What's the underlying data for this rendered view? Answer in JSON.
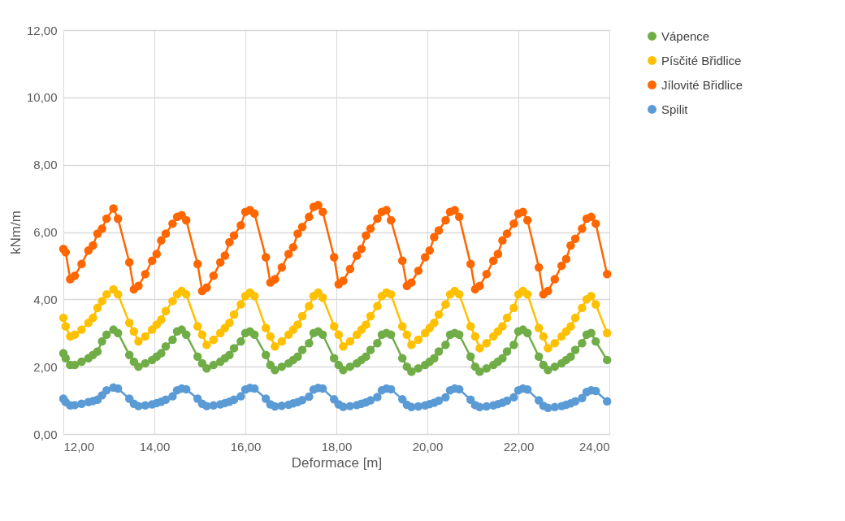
{
  "chart_data": {
    "type": "line",
    "xlabel": "Deformace [m]",
    "ylabel": "kNm/m",
    "marker": "circle",
    "line_style": "solid",
    "grid": true,
    "legend": "right",
    "xlim": [
      12,
      24
    ],
    "ylim": [
      0,
      12
    ],
    "xticks": [
      {
        "value": 12,
        "label": "12,00"
      },
      {
        "value": 14,
        "label": "14,00"
      },
      {
        "value": 16,
        "label": "16,00"
      },
      {
        "value": 18,
        "label": "18,00"
      },
      {
        "value": 20,
        "label": "20,00"
      },
      {
        "value": 22,
        "label": "22,00"
      },
      {
        "value": 24,
        "label": "24,00"
      }
    ],
    "yticks": [
      {
        "value": 0,
        "label": "0,00"
      },
      {
        "value": 2,
        "label": "2,00"
      },
      {
        "value": 4,
        "label": "4,00"
      },
      {
        "value": 6,
        "label": "6,00"
      },
      {
        "value": 8,
        "label": "8,00"
      },
      {
        "value": 10,
        "label": "10,00"
      },
      {
        "value": 12,
        "label": "12,00"
      }
    ],
    "x": [
      12.0,
      12.05,
      12.15,
      12.25,
      12.4,
      12.55,
      12.65,
      12.75,
      12.85,
      12.95,
      13.1,
      13.2,
      13.45,
      13.55,
      13.65,
      13.8,
      13.95,
      14.05,
      14.15,
      14.25,
      14.4,
      14.5,
      14.6,
      14.7,
      14.95,
      15.05,
      15.15,
      15.3,
      15.45,
      15.55,
      15.65,
      15.75,
      15.9,
      16.0,
      16.1,
      16.2,
      16.45,
      16.55,
      16.65,
      16.8,
      16.95,
      17.05,
      17.15,
      17.25,
      17.4,
      17.5,
      17.6,
      17.7,
      17.95,
      18.05,
      18.15,
      18.3,
      18.45,
      18.55,
      18.65,
      18.75,
      18.9,
      19.0,
      19.1,
      19.2,
      19.45,
      19.55,
      19.65,
      19.8,
      19.95,
      20.05,
      20.15,
      20.25,
      20.4,
      20.5,
      20.6,
      20.7,
      20.95,
      21.05,
      21.15,
      21.3,
      21.45,
      21.55,
      21.65,
      21.75,
      21.9,
      22.0,
      22.1,
      22.2,
      22.45,
      22.55,
      22.65,
      22.8,
      22.95,
      23.05,
      23.15,
      23.25,
      23.4,
      23.5,
      23.6,
      23.7,
      23.95
    ],
    "series": [
      {
        "name": "Vápence",
        "color": "#70ad47",
        "values": [
          2.4,
          2.25,
          2.05,
          2.05,
          2.15,
          2.25,
          2.35,
          2.45,
          2.75,
          2.95,
          3.1,
          3.0,
          2.35,
          2.15,
          2.0,
          2.1,
          2.2,
          2.3,
          2.4,
          2.6,
          2.8,
          3.05,
          3.1,
          2.95,
          2.3,
          2.1,
          1.95,
          2.05,
          2.15,
          2.25,
          2.35,
          2.55,
          2.75,
          3.0,
          3.05,
          2.95,
          2.35,
          2.05,
          1.9,
          2.0,
          2.1,
          2.2,
          2.3,
          2.5,
          2.7,
          3.0,
          3.05,
          2.95,
          2.25,
          2.05,
          1.9,
          2.0,
          2.1,
          2.2,
          2.3,
          2.5,
          2.7,
          2.95,
          3.0,
          2.95,
          2.25,
          2.0,
          1.85,
          1.95,
          2.05,
          2.15,
          2.25,
          2.45,
          2.65,
          2.95,
          3.0,
          2.95,
          2.3,
          2.0,
          1.85,
          1.95,
          2.05,
          2.15,
          2.25,
          2.45,
          2.65,
          3.05,
          3.1,
          3.0,
          2.3,
          2.05,
          1.9,
          2.0,
          2.1,
          2.2,
          2.3,
          2.5,
          2.7,
          2.95,
          3.0,
          2.75,
          2.2
        ]
      },
      {
        "name": "Písčité Břidlice",
        "color": "#ffc000",
        "values": [
          3.45,
          3.2,
          2.9,
          2.95,
          3.1,
          3.3,
          3.45,
          3.75,
          3.95,
          4.15,
          4.3,
          4.15,
          3.3,
          3.05,
          2.75,
          2.9,
          3.1,
          3.25,
          3.4,
          3.65,
          3.95,
          4.15,
          4.25,
          4.15,
          3.2,
          2.95,
          2.65,
          2.8,
          3.0,
          3.15,
          3.3,
          3.55,
          3.85,
          4.1,
          4.2,
          4.1,
          3.15,
          2.9,
          2.6,
          2.75,
          2.95,
          3.1,
          3.25,
          3.5,
          3.8,
          4.1,
          4.2,
          4.05,
          3.2,
          2.95,
          2.6,
          2.75,
          2.95,
          3.1,
          3.25,
          3.5,
          3.8,
          4.1,
          4.2,
          4.15,
          3.2,
          2.95,
          2.65,
          2.8,
          3.0,
          3.15,
          3.3,
          3.55,
          3.85,
          4.15,
          4.25,
          4.15,
          3.2,
          2.9,
          2.55,
          2.7,
          2.9,
          3.05,
          3.2,
          3.45,
          3.75,
          4.15,
          4.25,
          4.15,
          3.15,
          2.9,
          2.55,
          2.7,
          2.9,
          3.05,
          3.2,
          3.45,
          3.75,
          4.0,
          4.1,
          3.85,
          3.0
        ]
      },
      {
        "name": "Jílovité Břidlice",
        "color": "#ff6600",
        "values": [
          5.5,
          5.4,
          4.6,
          4.7,
          5.05,
          5.45,
          5.6,
          5.95,
          6.1,
          6.4,
          6.7,
          6.4,
          5.1,
          4.3,
          4.4,
          4.75,
          5.15,
          5.35,
          5.75,
          5.95,
          6.25,
          6.45,
          6.5,
          6.35,
          5.05,
          4.25,
          4.35,
          4.7,
          5.1,
          5.3,
          5.7,
          5.9,
          6.2,
          6.6,
          6.65,
          6.55,
          5.25,
          4.5,
          4.6,
          4.95,
          5.35,
          5.55,
          5.95,
          6.15,
          6.45,
          6.75,
          6.8,
          6.6,
          5.25,
          4.45,
          4.55,
          4.9,
          5.3,
          5.5,
          5.9,
          6.1,
          6.4,
          6.6,
          6.65,
          6.35,
          5.15,
          4.4,
          4.5,
          4.85,
          5.25,
          5.45,
          5.85,
          6.05,
          6.35,
          6.6,
          6.65,
          6.45,
          5.05,
          4.3,
          4.4,
          4.75,
          5.15,
          5.35,
          5.75,
          5.95,
          6.25,
          6.55,
          6.6,
          6.35,
          4.95,
          4.15,
          4.25,
          4.6,
          5.0,
          5.2,
          5.6,
          5.8,
          6.1,
          6.4,
          6.45,
          6.25,
          4.75
        ]
      },
      {
        "name": "Spilit",
        "color": "#5b9bd5",
        "values": [
          1.05,
          0.95,
          0.85,
          0.86,
          0.9,
          0.95,
          0.98,
          1.02,
          1.15,
          1.3,
          1.38,
          1.35,
          1.05,
          0.9,
          0.83,
          0.85,
          0.88,
          0.92,
          0.96,
          1.02,
          1.12,
          1.3,
          1.35,
          1.33,
          1.05,
          0.9,
          0.83,
          0.85,
          0.88,
          0.92,
          0.96,
          1.02,
          1.12,
          1.32,
          1.37,
          1.35,
          1.05,
          0.88,
          0.82,
          0.84,
          0.87,
          0.91,
          0.95,
          1.01,
          1.11,
          1.32,
          1.37,
          1.35,
          1.03,
          0.88,
          0.81,
          0.83,
          0.86,
          0.9,
          0.94,
          1.0,
          1.1,
          1.3,
          1.35,
          1.33,
          1.03,
          0.87,
          0.8,
          0.82,
          0.85,
          0.89,
          0.93,
          0.99,
          1.09,
          1.3,
          1.35,
          1.33,
          1.02,
          0.86,
          0.8,
          0.82,
          0.85,
          0.89,
          0.93,
          0.99,
          1.09,
          1.3,
          1.35,
          1.32,
          1.0,
          0.84,
          0.78,
          0.8,
          0.83,
          0.87,
          0.91,
          0.97,
          1.07,
          1.25,
          1.3,
          1.28,
          0.97
        ]
      }
    ]
  }
}
